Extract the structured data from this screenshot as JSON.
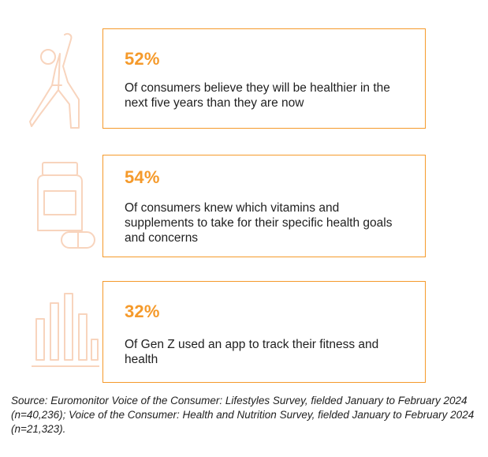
{
  "colors": {
    "accent": "#f59a2b",
    "icon_tint": "#f8d4bd",
    "text": "#1f1f1f"
  },
  "stats": [
    {
      "icon": "yoga-pose-icon",
      "value": "52%",
      "text": "Of consumers believe they will be healthier in the next five years than they are now"
    },
    {
      "icon": "supplement-bottle-icon",
      "value": "54%",
      "text": "Of consumers knew which vitamins and supplements to take for their specific health goals and concerns"
    },
    {
      "icon": "bar-chart-icon",
      "value": "32%",
      "text": "Of Gen Z used an app to track their fitness and health"
    }
  ],
  "source": "Source: Euromonitor Voice of the Consumer: Lifestyles Survey, fielded January to February 2024 (n=40,236); Voice of the Consumer: Health and Nutrition Survey, fielded January to February 2024 (n=21,323)."
}
